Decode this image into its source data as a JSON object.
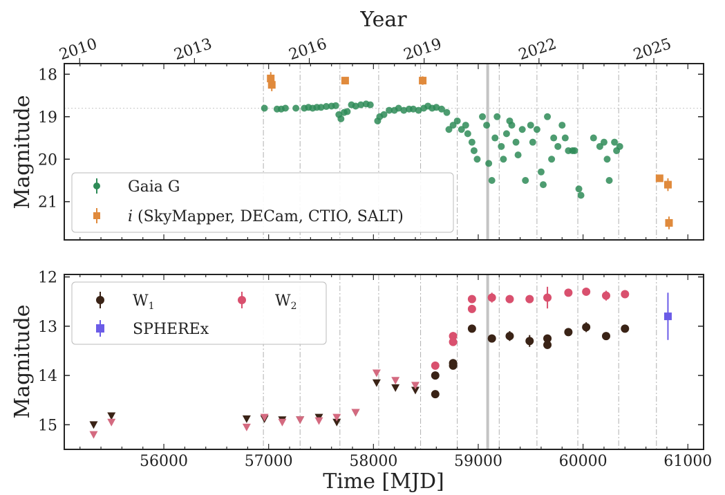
{
  "figure": {
    "top_axis_label": "Year",
    "year_ticks": [
      "2010",
      "2013",
      "2016",
      "2019",
      "2022",
      "2025"
    ],
    "xlabel": "Time [MJD]",
    "x_ticks": [
      "56000",
      "57000",
      "58000",
      "59000",
      "60000",
      "61000"
    ]
  },
  "chart_data": [
    {
      "type": "scatter",
      "ylabel": "Magnitude",
      "xlabel": "Time [MJD]",
      "xlim": [
        55050,
        61150
      ],
      "ylim": [
        21.9,
        17.75
      ],
      "y_ticks": [
        "18",
        "19",
        "20",
        "21"
      ],
      "y_inverted": true,
      "grid": false,
      "reference_line_y": 18.8,
      "vertical_dashed_lines_x": [
        56950,
        57300,
        57680,
        58050,
        58450,
        58800,
        59200,
        59560,
        59950,
        60340,
        60700
      ],
      "vertical_solid_line_x": 59090,
      "legend_position": "bottom-left",
      "legend": [
        {
          "label": "Gaia G",
          "color": "#2e8b57",
          "marker": "circle"
        },
        {
          "label": "i (SkyMapper, DECam, CTIO, SALT)",
          "italic_prefix": "i",
          "rest": " (SkyMapper, DECam, CTIO, SALT)",
          "color": "#e08a3c",
          "marker": "square"
        }
      ],
      "series": [
        {
          "name": "Gaia G",
          "color": "#2e8b57",
          "marker": "circle",
          "points": [
            [
              56960,
              18.8
            ],
            [
              57080,
              18.82
            ],
            [
              57120,
              18.82
            ],
            [
              57160,
              18.8
            ],
            [
              57260,
              18.8
            ],
            [
              57340,
              18.8
            ],
            [
              57380,
              18.78
            ],
            [
              57420,
              18.8
            ],
            [
              57460,
              18.78
            ],
            [
              57500,
              18.78
            ],
            [
              57550,
              18.76
            ],
            [
              57600,
              18.75
            ],
            [
              57640,
              18.74
            ],
            [
              57670,
              18.95
            ],
            [
              57690,
              19.05
            ],
            [
              57720,
              18.9
            ],
            [
              57750,
              18.88
            ],
            [
              57790,
              18.72
            ],
            [
              57830,
              18.75
            ],
            [
              57880,
              18.72
            ],
            [
              57930,
              18.7
            ],
            [
              57970,
              18.72
            ],
            [
              58040,
              19.1
            ],
            [
              58060,
              19.0
            ],
            [
              58100,
              18.95
            ],
            [
              58150,
              18.85
            ],
            [
              58200,
              18.85
            ],
            [
              58240,
              18.8
            ],
            [
              58290,
              18.85
            ],
            [
              58340,
              18.82
            ],
            [
              58380,
              18.82
            ],
            [
              58430,
              18.85
            ],
            [
              58480,
              18.8
            ],
            [
              58520,
              18.75
            ],
            [
              58560,
              18.8
            ],
            [
              58600,
              18.78
            ],
            [
              58650,
              18.82
            ],
            [
              58700,
              18.9
            ],
            [
              58720,
              19.3
            ],
            [
              58760,
              19.2
            ],
            [
              58800,
              19.1
            ],
            [
              58840,
              19.3
            ],
            [
              58880,
              19.2
            ],
            [
              58900,
              19.4
            ],
            [
              58940,
              19.6
            ],
            [
              58960,
              19.8
            ],
            [
              58990,
              20.0
            ],
            [
              59040,
              19.0
            ],
            [
              59080,
              19.2
            ],
            [
              59100,
              20.1
            ],
            [
              59130,
              20.5
            ],
            [
              59160,
              19.5
            ],
            [
              59180,
              19.0
            ],
            [
              59220,
              19.7
            ],
            [
              59240,
              20.0
            ],
            [
              59270,
              19.4
            ],
            [
              59300,
              19.1
            ],
            [
              59320,
              19.2
            ],
            [
              59360,
              19.6
            ],
            [
              59380,
              19.9
            ],
            [
              59420,
              19.3
            ],
            [
              59450,
              20.5
            ],
            [
              59500,
              19.2
            ],
            [
              59520,
              19.6
            ],
            [
              59560,
              19.3
            ],
            [
              59600,
              20.3
            ],
            [
              59620,
              20.6
            ],
            [
              59660,
              19.0
            ],
            [
              59700,
              20.0
            ],
            [
              59720,
              19.5
            ],
            [
              59760,
              19.7
            ],
            [
              59800,
              19.2
            ],
            [
              59830,
              19.5
            ],
            [
              59860,
              19.8
            ],
            [
              59900,
              19.8
            ],
            [
              59920,
              19.8
            ],
            [
              59960,
              20.7
            ],
            [
              59980,
              20.85
            ],
            [
              60100,
              19.5
            ],
            [
              60160,
              19.7
            ],
            [
              60200,
              19.6
            ],
            [
              60230,
              20.0
            ],
            [
              60250,
              20.5
            ],
            [
              60300,
              19.6
            ],
            [
              60320,
              19.8
            ],
            [
              60350,
              19.7
            ]
          ]
        },
        {
          "name": "i (SkyMapper, DECam, CTIO, SALT)",
          "color": "#e08a3c",
          "marker": "square",
          "points": [
            [
              57020,
              18.1,
              0.15
            ],
            [
              57030,
              18.25,
              0.15
            ],
            [
              57730,
              18.15,
              0.08
            ],
            [
              58470,
              18.15,
              0.1
            ],
            [
              60730,
              20.45,
              0.08
            ],
            [
              60810,
              20.6,
              0.15
            ],
            [
              60820,
              21.5,
              0.15
            ]
          ]
        }
      ]
    },
    {
      "type": "scatter",
      "ylabel": "Magnitude",
      "xlabel": "Time [MJD]",
      "xlim": [
        55050,
        61150
      ],
      "ylim": [
        15.5,
        11.95
      ],
      "y_ticks": [
        "12",
        "13",
        "14",
        "15"
      ],
      "y_inverted": true,
      "grid": false,
      "vertical_dashed_lines_x": [
        56950,
        57300,
        57680,
        58050,
        58450,
        58800,
        59200,
        59560,
        59950,
        60340,
        60700
      ],
      "vertical_solid_line_x": 59090,
      "legend_position": "top-left",
      "legend": [
        {
          "label": "W",
          "sub": "1",
          "color": "#3a2316",
          "marker": "circle"
        },
        {
          "label": "W",
          "sub": "2",
          "color": "#d9506e",
          "marker": "circle"
        },
        {
          "label": "SPHEREx",
          "color": "#6b5ce7",
          "marker": "square"
        }
      ],
      "series": [
        {
          "name": "W1 upper limits",
          "color": "#3a2316",
          "marker": "triangle-down",
          "points": [
            [
              55330,
              15.0
            ],
            [
              55500,
              14.82
            ],
            [
              56790,
              14.88
            ],
            [
              56960,
              14.88
            ],
            [
              57130,
              14.9
            ],
            [
              57300,
              14.9
            ],
            [
              57480,
              14.85
            ],
            [
              57650,
              14.95
            ],
            [
              57830,
              14.75
            ],
            [
              58030,
              14.15
            ],
            [
              58210,
              14.25
            ],
            [
              58400,
              14.3
            ]
          ]
        },
        {
          "name": "W2 upper limits",
          "color": "#d46a80",
          "marker": "triangle-down",
          "points": [
            [
              55330,
              15.2
            ],
            [
              55500,
              14.95
            ],
            [
              56790,
              15.05
            ],
            [
              56960,
              14.85
            ],
            [
              57130,
              14.95
            ],
            [
              57300,
              14.9
            ],
            [
              57480,
              14.92
            ],
            [
              57650,
              14.85
            ],
            [
              57830,
              14.75
            ],
            [
              58030,
              13.95
            ],
            [
              58210,
              14.1
            ],
            [
              58400,
              14.2
            ]
          ]
        },
        {
          "name": "W1",
          "color": "#3a2316",
          "marker": "circle",
          "points": [
            [
              58590,
              14.0,
              0.05
            ],
            [
              58590,
              14.38,
              0.03
            ],
            [
              58760,
              13.75,
              0.06
            ],
            [
              58760,
              13.8,
              0.05
            ],
            [
              58940,
              13.05,
              0.08
            ],
            [
              59130,
              13.25,
              0.08
            ],
            [
              59300,
              13.2,
              0.1
            ],
            [
              59490,
              13.3,
              0.12
            ],
            [
              59660,
              13.25,
              0.06
            ],
            [
              59660,
              13.38,
              0.08
            ],
            [
              59860,
              13.12,
              0.05
            ],
            [
              60030,
              13.02,
              0.1
            ],
            [
              60220,
              13.2,
              0.06
            ],
            [
              60400,
              13.05,
              0.05
            ]
          ]
        },
        {
          "name": "W2",
          "color": "#d9506e",
          "marker": "circle",
          "points": [
            [
              58590,
              13.8,
              0.08
            ],
            [
              58760,
              13.2,
              0.08
            ],
            [
              58760,
              13.32,
              0.06
            ],
            [
              58940,
              12.45,
              0.05
            ],
            [
              58940,
              12.65,
              0.08
            ],
            [
              59130,
              12.42,
              0.1
            ],
            [
              59300,
              12.45,
              0.08
            ],
            [
              59490,
              12.45,
              0.08
            ],
            [
              59660,
              12.42,
              0.22
            ],
            [
              59860,
              12.32,
              0.05
            ],
            [
              60030,
              12.3,
              0.08
            ],
            [
              60220,
              12.38,
              0.1
            ],
            [
              60400,
              12.35,
              0.05
            ]
          ]
        },
        {
          "name": "SPHEREx",
          "color": "#6b5ce7",
          "marker": "square",
          "points": [
            [
              60810,
              12.8,
              0.48
            ]
          ]
        }
      ]
    }
  ]
}
